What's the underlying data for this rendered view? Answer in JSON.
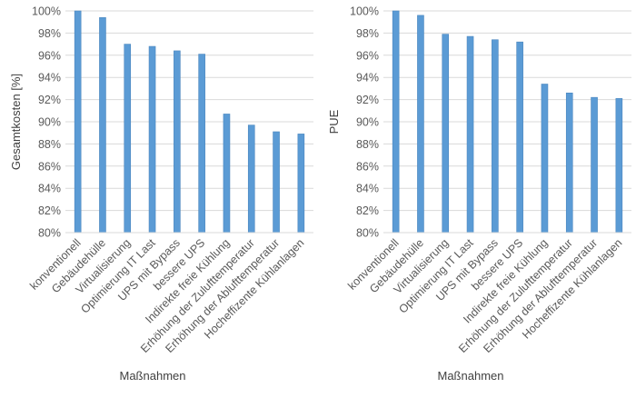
{
  "chart_data": [
    {
      "type": "bar",
      "categories": [
        "konventionell",
        "Gebäudehülle",
        "Virtualisierung",
        "Optimierung IT Last",
        "UPS mit Bypass",
        "bessere UPS",
        "Indirekte freie Kühlung",
        "Erhöhung der Zulufttemperatur",
        "Erhöhung der Ablufttemperatur",
        "Hocheffizente Kühlanlagen"
      ],
      "values": [
        100,
        99.4,
        97.0,
        96.8,
        96.4,
        96.1,
        90.7,
        89.7,
        89.1,
        88.9
      ],
      "title": "",
      "xlabel": "Maßnahmen",
      "ylabel": "Gesamtkosten [%]",
      "ylim": [
        80,
        100
      ],
      "yticks": [
        "80%",
        "82%",
        "84%",
        "86%",
        "88%",
        "90%",
        "92%",
        "94%",
        "96%",
        "98%",
        "100%"
      ],
      "grid": true,
      "color": "#5b9bd5"
    },
    {
      "type": "bar",
      "categories": [
        "konventionell",
        "Gebäudehülle",
        "Virtualisierung",
        "Optimierung IT Last",
        "UPS mit Bypass",
        "bessere UPS",
        "Indirekte freie Kühlung",
        "Erhöhung der Zulufttemperatur",
        "Erhöhung der Ablufttemperatur",
        "Hocheffizente Kühlanlagen"
      ],
      "values": [
        100,
        99.6,
        97.9,
        97.7,
        97.4,
        97.2,
        93.4,
        92.6,
        92.2,
        92.1
      ],
      "title": "",
      "xlabel": "Maßnahmen",
      "ylabel": "PUE",
      "ylim": [
        80,
        100
      ],
      "yticks": [
        "80%",
        "82%",
        "84%",
        "86%",
        "88%",
        "90%",
        "92%",
        "94%",
        "96%",
        "98%",
        "100%"
      ],
      "grid": true,
      "color": "#5b9bd5"
    }
  ]
}
